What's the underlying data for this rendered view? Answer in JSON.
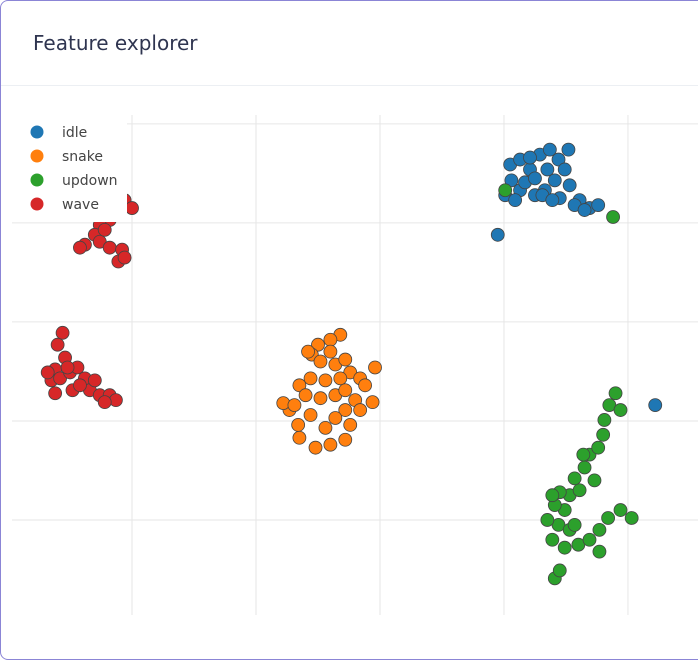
{
  "header": {
    "title": "Feature explorer"
  },
  "chart_data": {
    "type": "scatter",
    "xlim": [
      -0.968,
      4.565
    ],
    "ylim": [
      -0.96,
      4.09
    ],
    "xticks": [
      0,
      1,
      2,
      3,
      4
    ],
    "yticks": [
      0,
      1,
      2,
      3,
      4
    ],
    "grid": true,
    "legend": "top-left",
    "series": [
      {
        "name": "idle",
        "color": "#1f77b4",
        "x": [
          3.05,
          3.13,
          3.21,
          3.29,
          3.37,
          3.44,
          3.49,
          3.41,
          3.33,
          3.25,
          3.13,
          3.06,
          3.17,
          3.35,
          3.53,
          3.61,
          3.69,
          3.76,
          3.57,
          3.45,
          3.01,
          3.09,
          3.21,
          3.31,
          3.52,
          2.95,
          4.22,
          3.65,
          3.39,
          3.25
        ],
        "y": [
          3.59,
          3.64,
          3.54,
          3.69,
          3.74,
          3.64,
          3.54,
          3.43,
          3.33,
          3.28,
          3.33,
          3.43,
          3.41,
          3.54,
          3.38,
          3.23,
          3.15,
          3.18,
          3.18,
          3.25,
          3.28,
          3.23,
          3.66,
          3.28,
          3.74,
          2.88,
          1.16,
          3.13,
          3.23,
          3.45
        ]
      },
      {
        "name": "snake",
        "color": "#ff7f0e",
        "x": [
          1.68,
          1.6,
          1.5,
          1.45,
          1.52,
          1.64,
          1.72,
          1.76,
          1.68,
          1.56,
          1.44,
          1.35,
          1.4,
          1.52,
          1.64,
          1.72,
          1.84,
          1.96,
          1.88,
          1.8,
          1.72,
          1.64,
          1.76,
          1.72,
          1.6,
          1.48,
          1.35,
          1.34,
          1.27,
          1.22,
          1.31,
          1.44,
          1.56,
          1.84,
          1.94,
          1.42,
          1.6
        ],
        "y": [
          1.87,
          1.82,
          1.77,
          1.67,
          1.6,
          1.57,
          1.62,
          1.49,
          1.43,
          1.41,
          1.43,
          1.36,
          1.26,
          1.23,
          1.26,
          1.31,
          1.43,
          1.54,
          1.36,
          1.21,
          1.11,
          1.03,
          0.96,
          0.81,
          0.76,
          0.73,
          0.83,
          0.96,
          1.11,
          1.18,
          1.16,
          1.06,
          0.93,
          1.11,
          1.19,
          1.7,
          1.7
        ]
      },
      {
        "name": "updown",
        "color": "#2ca02c",
        "x": [
          3.41,
          3.45,
          3.39,
          3.44,
          3.35,
          3.49,
          3.53,
          3.61,
          3.57,
          3.65,
          3.69,
          3.76,
          3.8,
          3.81,
          3.85,
          3.9,
          3.94,
          3.73,
          3.45,
          3.41,
          3.53,
          3.49,
          3.6,
          3.69,
          3.77,
          3.84,
          3.94,
          4.03,
          3.77,
          3.57,
          3.64,
          3.01,
          3.88,
          3.39
        ],
        "y": [
          -0.59,
          -0.51,
          -0.2,
          -0.05,
          0.0,
          0.1,
          0.25,
          0.3,
          0.42,
          0.53,
          0.66,
          0.73,
          0.86,
          1.01,
          1.16,
          1.28,
          1.11,
          0.4,
          0.28,
          0.15,
          -0.1,
          -0.28,
          -0.25,
          -0.2,
          -0.1,
          0.02,
          0.1,
          0.02,
          -0.32,
          -0.05,
          0.66,
          3.33,
          3.06,
          0.25
        ]
      },
      {
        "name": "wave",
        "color": "#d62728",
        "x": [
          -0.56,
          -0.6,
          -0.54,
          -0.62,
          -0.65,
          -0.58,
          -0.5,
          -0.44,
          -0.38,
          -0.48,
          -0.62,
          -0.34,
          -0.26,
          -0.18,
          -0.13,
          -0.22,
          -0.42,
          -0.52,
          -0.3,
          -0.68,
          -0.14,
          -0.06,
          0.0,
          -0.1,
          -0.18,
          -0.26,
          -0.3,
          -0.38,
          -0.42,
          -0.26,
          -0.18,
          -0.08,
          -0.11,
          -0.06,
          -0.22,
          -0.32
        ],
        "y": [
          1.89,
          1.77,
          1.64,
          1.52,
          1.41,
          1.43,
          1.49,
          1.54,
          1.43,
          1.31,
          1.28,
          1.31,
          1.26,
          1.26,
          1.21,
          1.19,
          1.36,
          1.54,
          1.41,
          1.49,
          3.28,
          3.23,
          3.15,
          3.11,
          3.03,
          2.98,
          2.88,
          2.78,
          2.75,
          2.81,
          2.75,
          2.73,
          2.61,
          2.65,
          2.93,
          3.08
        ]
      }
    ]
  }
}
